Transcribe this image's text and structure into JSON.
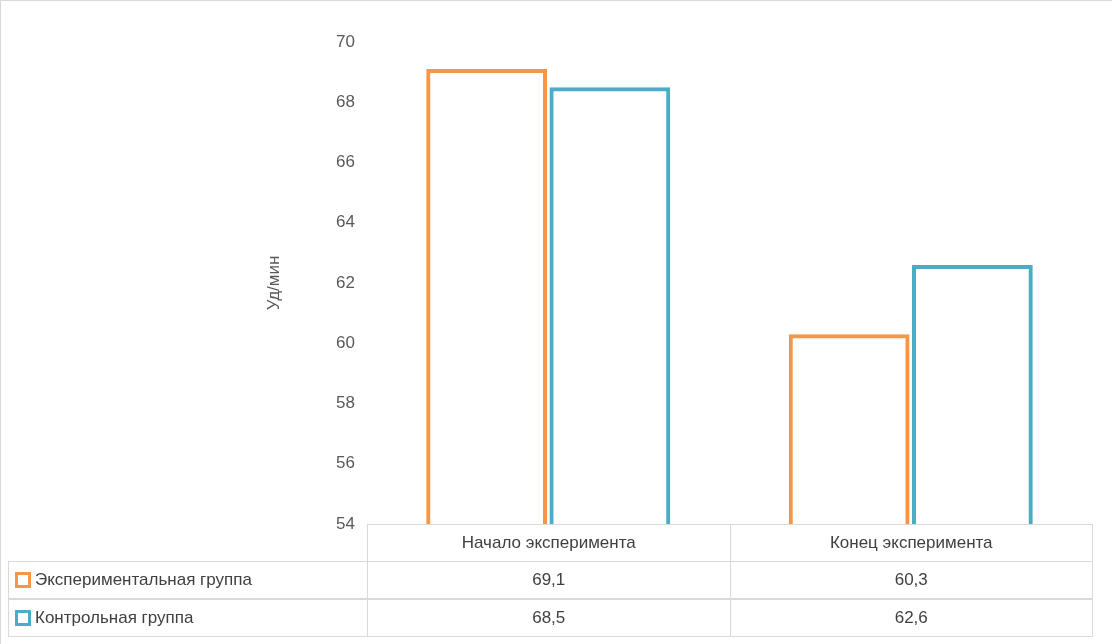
{
  "chart_data": {
    "type": "bar",
    "ylabel": "Уд/мин",
    "categories": [
      "Начало эксперимента",
      "Конец эксперимента"
    ],
    "series": [
      {
        "name": "Экспериментальная группа",
        "color": "#f79646",
        "values": [
          69.1,
          60.3
        ],
        "value_labels": [
          "69,1",
          "60,3"
        ]
      },
      {
        "name": "Контрольная группа",
        "color": "#4bacc6",
        "values": [
          68.5,
          62.6
        ],
        "value_labels": [
          "68,5",
          "62,6"
        ]
      }
    ],
    "ylim": [
      54,
      70
    ],
    "yticks": [
      54,
      56,
      58,
      60,
      62,
      64,
      66,
      68,
      70
    ],
    "grid": false,
    "legend": "bottom"
  }
}
